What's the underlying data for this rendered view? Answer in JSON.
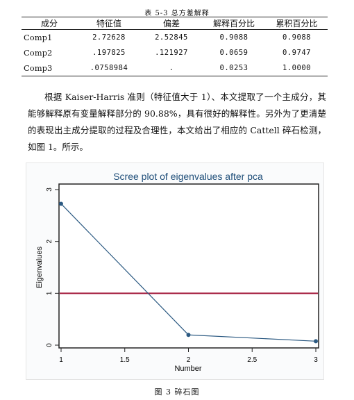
{
  "table": {
    "caption": "表 5-3 总方差解释",
    "headers": [
      "成分",
      "特征值",
      "偏差",
      "解释百分比",
      "累积百分比"
    ],
    "rows": [
      [
        "Comp1",
        "2.72628",
        "2.52845",
        "0.9088",
        "0.9088"
      ],
      [
        "Comp2",
        ".197825",
        ".121927",
        "0.0659",
        "0.9747"
      ],
      [
        "Comp3",
        ".0758984",
        ".",
        "0.0253",
        "1.0000"
      ]
    ]
  },
  "paragraph": "根据 Kaiser-Harris 准则（特征值大于 1）、本文提取了一个主成分，其能够解释原有变量解释部分的 90.88%，具有很好的解释性。另外为了更清楚的表现出主成分提取的过程及合理性，本文给出了相应的 Cattell 碎石检测，如图 1。所示。",
  "chart_data": {
    "type": "line",
    "title": "Scree plot of eigenvalues after pca",
    "xlabel": "Number",
    "ylabel": "Eigenvalues",
    "x": [
      1,
      2,
      3
    ],
    "series": [
      {
        "values": [
          2.72628,
          0.197825,
          0.0758984
        ],
        "color": "#2c5a82"
      }
    ],
    "reference_line": {
      "y": 1,
      "color": "#a3193b"
    },
    "xlim": [
      1,
      3
    ],
    "ylim": [
      0,
      3
    ],
    "xticks": [
      "1",
      "1.5",
      "2",
      "2.5",
      "3"
    ],
    "yticks": [
      "0",
      "1",
      "2",
      "3"
    ],
    "title_color": "#1f4e79",
    "grid": false
  },
  "figure_caption": "图 3 碎石图"
}
